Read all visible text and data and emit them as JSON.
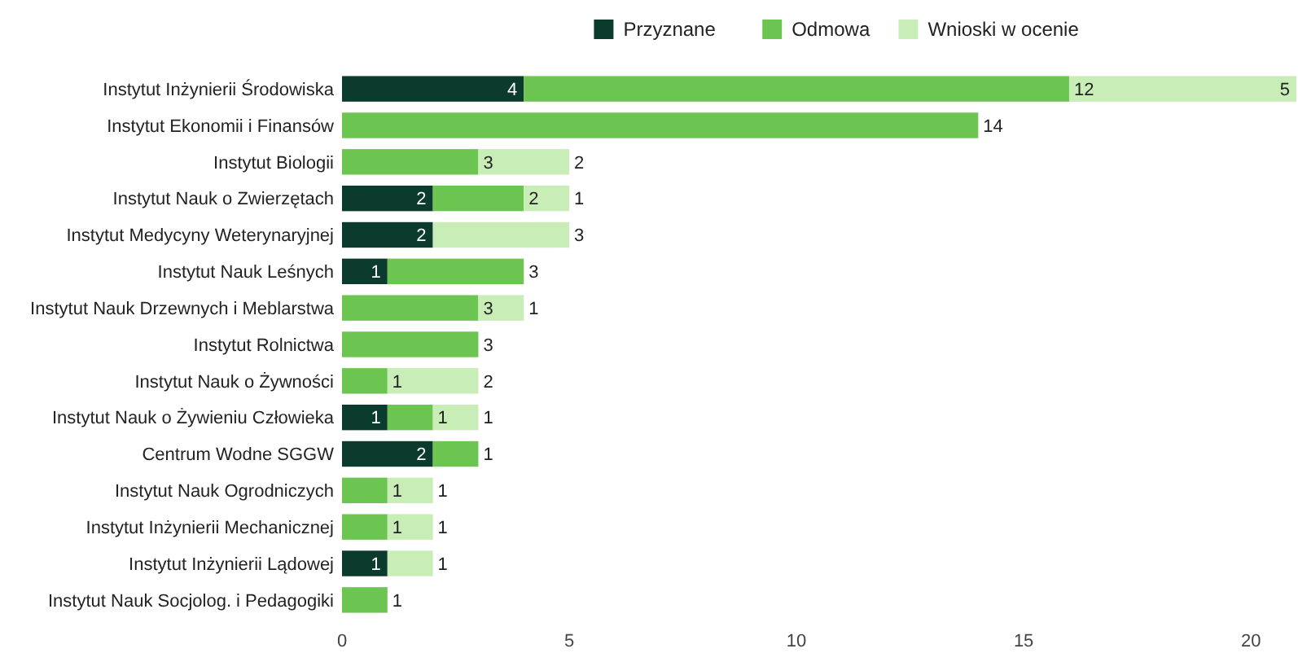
{
  "chart_data": {
    "type": "bar",
    "orientation": "horizontal",
    "stacked": true,
    "data_labels": true,
    "legend": "top",
    "grid": false,
    "categories": [
      "Instytut Inżynierii Środowiska",
      "Instytut Ekonomii i Finansów",
      "Instytut Biologii",
      "Instytut Nauk o Zwierzętach",
      "Instytut Medycyny Weterynaryjnej",
      "Instytut Nauk Leśnych",
      "Instytut Nauk Drzewnych i Meblarstwa",
      "Instytut Rolnictwa",
      "Instytut Nauk o Żywności",
      "Instytut Nauk o Żywieniu Człowieka",
      "Centrum Wodne SGGW",
      "Instytut Nauk Ogrodniczych",
      "Instytut Inżynierii Mechanicznej",
      "Instytut Inżynierii Lądowej",
      "Instytut Nauk Socjolog. i Pedagogiki"
    ],
    "series": [
      {
        "name": "Przyznane",
        "color": "#0b3b2c",
        "values": [
          4,
          null,
          null,
          2,
          2,
          1,
          null,
          null,
          null,
          1,
          2,
          null,
          null,
          1,
          null
        ]
      },
      {
        "name": "Odmowa",
        "color": "#6cc551",
        "values": [
          12,
          14,
          3,
          2,
          null,
          3,
          3,
          3,
          1,
          1,
          1,
          1,
          1,
          null,
          1
        ]
      },
      {
        "name": "Wnioski w ocenie",
        "color": "#c9edb6",
        "values": [
          5,
          null,
          2,
          1,
          3,
          null,
          1,
          null,
          2,
          1,
          null,
          1,
          1,
          1,
          null
        ]
      }
    ],
    "xlim": [
      0,
      21
    ],
    "xticks": [
      0,
      5,
      10,
      15,
      20
    ]
  }
}
